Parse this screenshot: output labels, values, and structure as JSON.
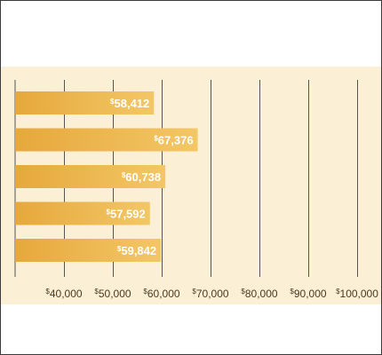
{
  "chart_data": {
    "type": "bar",
    "orientation": "horizontal",
    "title": "",
    "xlabel": "",
    "ylabel": "",
    "categories": [
      "",
      "",
      "",
      "",
      ""
    ],
    "values": [
      58412,
      67376,
      60738,
      57592,
      59842
    ],
    "data_labels": [
      "58,412",
      "67,376",
      "60,738",
      "57,592",
      "59,842"
    ],
    "currency_symbol": "$",
    "xlim": [
      30000,
      100000
    ],
    "x_ticks": [
      40000,
      50000,
      60000,
      70000,
      80000,
      90000,
      100000
    ],
    "x_tick_labels": [
      "40,000",
      "50,000",
      "60,000",
      "70,000",
      "80,000",
      "90,000",
      "100,000"
    ],
    "grid": true,
    "legend": "none",
    "colors": {
      "bar": "#e6a83c",
      "bar_highlight": "#f3c766",
      "panel_background": "#fbefd6",
      "grid": "#555555",
      "data_label": "#ffffff",
      "tick_label": "#4a3a24"
    }
  }
}
